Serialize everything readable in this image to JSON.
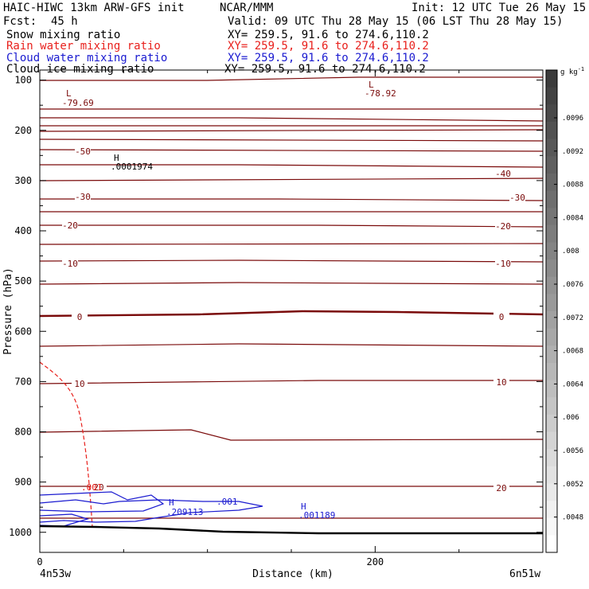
{
  "header": {
    "title": "HAIC-HIWC 13km ARW-GFS init",
    "org": "NCAR/MMM",
    "init": "Init: 12 UTC Tue 26 May 15",
    "fcst_label": "Fcst:",
    "fcst_value": "45 h",
    "valid": "Valid: 09 UTC Thu 28 May 15 (06 LST Thu 28 May 15)"
  },
  "fields": [
    {
      "name": "Snow mixing ratio",
      "xy": "XY= 259.5, 91.6 to 274.6,110.2",
      "color": "#000000"
    },
    {
      "name": "Rain water mixing ratio",
      "xy": "XY= 259.5, 91.6 to 274.6,110.2",
      "color": "#e8201c"
    },
    {
      "name": "Cloud water mixing ratio",
      "xy": "XY= 259.5, 91.6 to 274.6,110.2",
      "color": "#1a1ad0"
    },
    {
      "name": "Cloud ice mixing ratio",
      "xy": "XY= 259.5, 91.6 to 274.6,110.2",
      "color": "#000000"
    }
  ],
  "colors": {
    "temperature": "#7a0a0a",
    "rain": "#e8201c",
    "cloud_water": "#1a1ad0",
    "ground": "#000000"
  },
  "chart_data": {
    "type": "cross-section contour",
    "xlabel": "Distance (km)",
    "ylabel": "Pressure (hPa)",
    "x_ticks": [
      "0",
      "200"
    ],
    "x_endpoints": [
      "4n53w",
      "6n51w"
    ],
    "y_ticks": [
      "100",
      "200",
      "300",
      "400",
      "500",
      "600",
      "700",
      "800",
      "900",
      "1000"
    ],
    "xlim": [
      0,
      300
    ],
    "ylim": [
      1040,
      80
    ],
    "temperature_contour_labels": [
      "-50",
      "-40",
      "-30",
      "-30",
      "-20",
      "-20",
      "-10",
      "-10",
      "0",
      "0",
      "10",
      "10",
      "20",
      "20"
    ],
    "extrema": [
      {
        "type": "L",
        "value": "-79.69",
        "color": "#7a0a0a"
      },
      {
        "type": "L",
        "value": "-78.92",
        "color": "#7a0a0a"
      },
      {
        "type": "H",
        "value": ".0001974",
        "color": "#000000"
      },
      {
        "type": "H",
        "value": ".209113",
        "color": "#1a1ad0"
      },
      {
        "type": "H",
        "value": ".001189",
        "color": "#1a1ad0"
      }
    ],
    "contour_value_labels": [
      {
        "text": ".001",
        "color": "#1a1ad0"
      },
      {
        "text": ".001",
        "color": "#e8201c"
      }
    ],
    "colorbar": {
      "unit": "g kg",
      "unit_exp": "-1",
      "labels": [
        ".0096",
        ".0092",
        ".0088",
        ".0084",
        ".008",
        ".0076",
        ".0072",
        ".0068",
        ".0064",
        ".006",
        ".0056",
        ".0052",
        ".0048"
      ]
    }
  }
}
